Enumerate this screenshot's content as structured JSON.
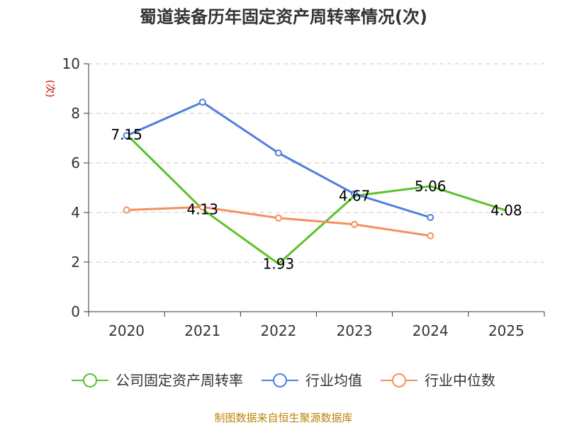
{
  "chart_data": {
    "type": "line",
    "title": "蜀道装备历年固定资产周转率情况(次)",
    "ylabel": "(次)",
    "xlabel": "",
    "categories": [
      "2020",
      "2021",
      "2022",
      "2023",
      "2024",
      "2025"
    ],
    "ylim": [
      0,
      10
    ],
    "yticks": [
      "0",
      "2",
      "4",
      "6",
      "8",
      "10"
    ],
    "grid": true,
    "legend_position": "bottom",
    "series": [
      {
        "name": "公司固定资产周转率",
        "color": "#5cc22b",
        "values": [
          7.15,
          4.13,
          1.93,
          4.67,
          5.06,
          4.08
        ],
        "labels": [
          "7.15",
          "4.13",
          "1.93",
          "4.67",
          "5.06",
          "4.08"
        ],
        "markers": false
      },
      {
        "name": "行业均值",
        "color": "#4f7fde",
        "values": [
          7.1,
          8.45,
          6.4,
          4.75,
          3.8,
          null
        ],
        "markers": true
      },
      {
        "name": "行业中位数",
        "color": "#f58f5e",
        "values": [
          4.1,
          4.22,
          3.78,
          3.52,
          3.06,
          null
        ],
        "markers": true
      }
    ]
  },
  "source_note": "制图数据来自恒生聚源数据库"
}
